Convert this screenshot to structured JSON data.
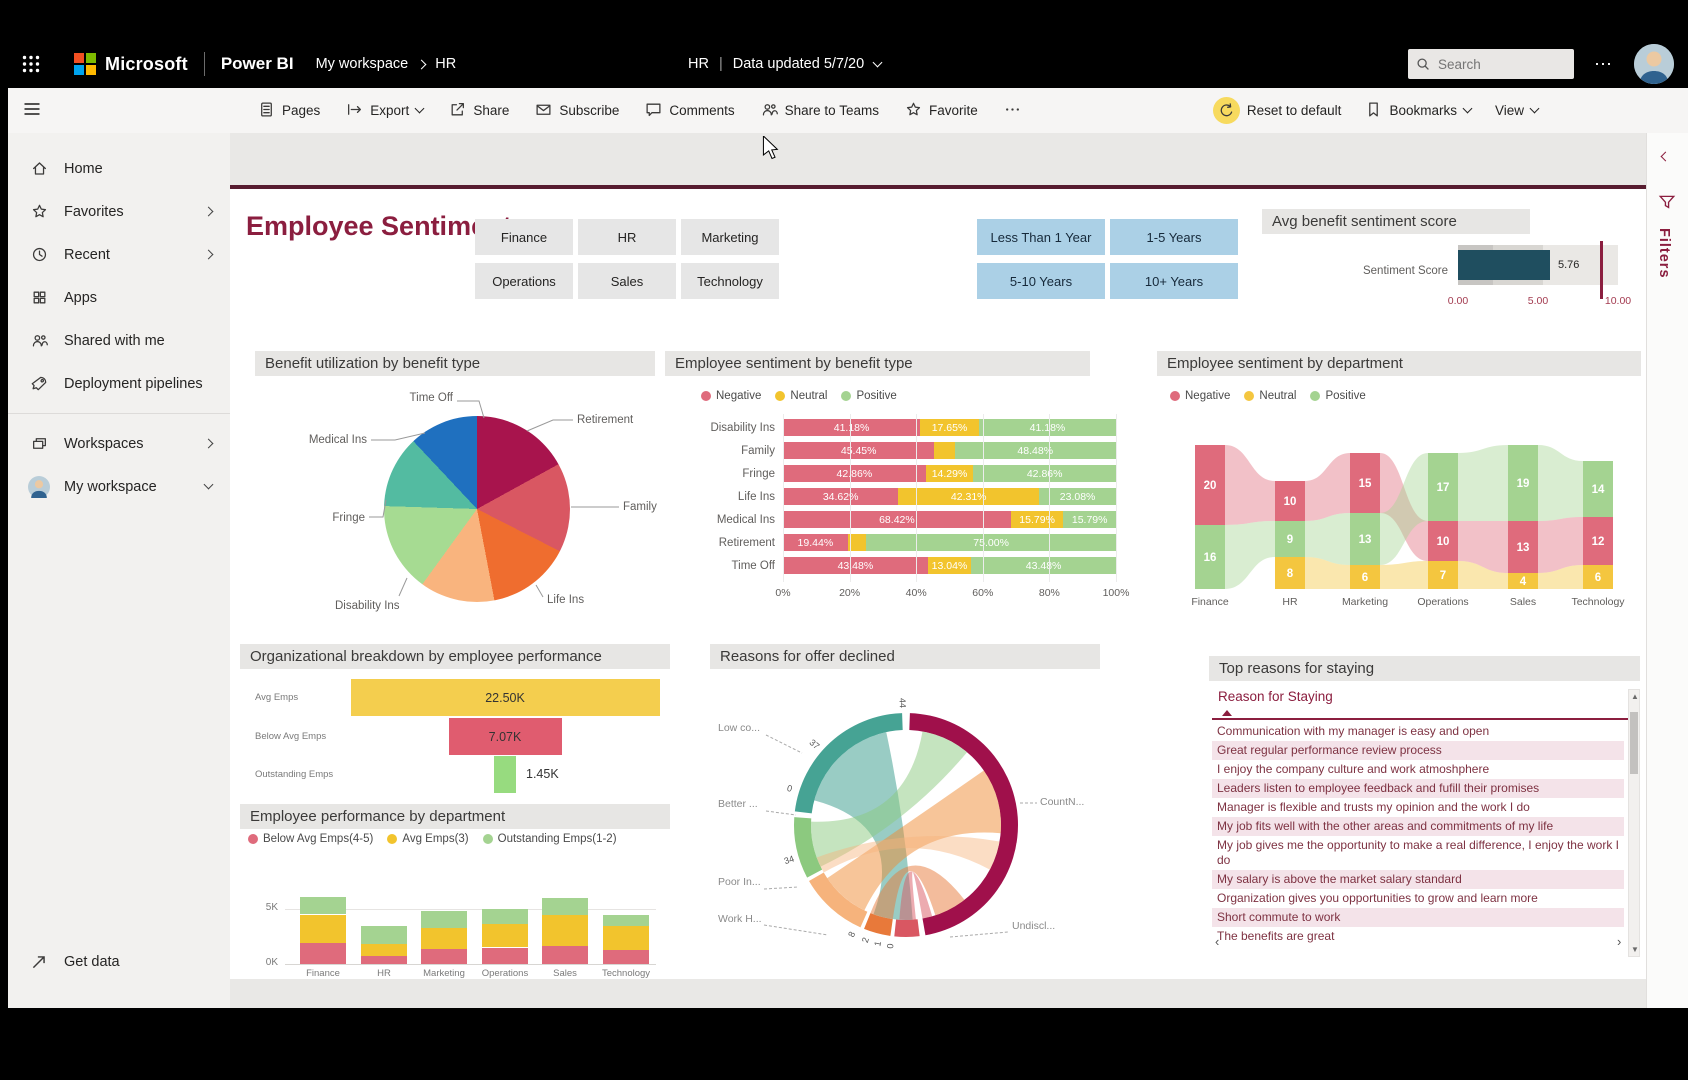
{
  "appbar": {
    "microsoft": "Microsoft",
    "product": "Power BI",
    "breadcrumb_workspace": "My workspace",
    "breadcrumb_page": "HR",
    "center_title": "HR",
    "center_updated": "Data updated 5/7/20",
    "search_placeholder": "Search",
    "more": "..."
  },
  "toolbar": {
    "left": [
      {
        "icon": "pages-icon",
        "label": "Pages"
      },
      {
        "icon": "export-icon",
        "label": "Export",
        "chevron": true
      },
      {
        "icon": "share-icon",
        "label": "Share"
      },
      {
        "icon": "subscribe-icon",
        "label": "Subscribe"
      },
      {
        "icon": "comments-icon",
        "label": "Comments"
      },
      {
        "icon": "teams-icon",
        "label": "Share to Teams"
      },
      {
        "icon": "favorite-icon",
        "label": "Favorite"
      },
      {
        "icon": "more-icon",
        "label": ""
      }
    ],
    "right": [
      {
        "icon": "reset-icon",
        "label": "Reset to default",
        "highlight": true
      },
      {
        "icon": "bookmark-icon",
        "label": "Bookmarks",
        "chevron": true
      },
      {
        "icon": "",
        "label": "View",
        "chevron": true
      }
    ]
  },
  "sidebar": {
    "items": [
      {
        "icon": "home-icon",
        "label": "Home"
      },
      {
        "icon": "star-icon",
        "label": "Favorites",
        "chevron": "right"
      },
      {
        "icon": "clock-icon",
        "label": "Recent",
        "chevron": "right"
      },
      {
        "icon": "apps-icon",
        "label": "Apps"
      },
      {
        "icon": "people-icon",
        "label": "Shared with me"
      },
      {
        "icon": "rocket-icon",
        "label": "Deployment pipelines"
      },
      {
        "icon": "layers-icon",
        "label": "Workspaces",
        "chevron": "right"
      },
      {
        "icon": "avatar",
        "label": "My workspace",
        "chevron": "down"
      }
    ],
    "divider_after": 5,
    "bottom_label": "Get data"
  },
  "filters_rail": {
    "label": "Filters"
  },
  "report": {
    "title": "Employee Sentiment",
    "slicers": {
      "departments": [
        "Finance",
        "HR",
        "Marketing",
        "Operations",
        "Sales",
        "Technology"
      ],
      "tenure": [
        "Less Than 1 Year",
        "1-5 Years",
        "5-10 Years",
        "10+ Years"
      ]
    },
    "gauge": {
      "title": "Avg benefit sentiment score",
      "label": "Sentiment Score",
      "value": "5.76",
      "value_num": 5.76,
      "min": 0,
      "max": 10,
      "ticks": [
        "0.00",
        "5.00",
        "10.00"
      ],
      "bar_color": "#1F4E5F",
      "target_color": "#8B1E3F"
    },
    "pie": {
      "title": "Benefit utilization by benefit type",
      "slices": [
        {
          "label": "Retirement",
          "pct": 17,
          "color": "#A8144D"
        },
        {
          "label": "Family",
          "pct": 15.5,
          "color": "#D95762"
        },
        {
          "label": "Life Ins",
          "pct": 14.5,
          "color": "#EF6D2F"
        },
        {
          "label": "Disability Ins",
          "pct": 13,
          "color": "#F9B47E"
        },
        {
          "label": "Fringe",
          "pct": 15.5,
          "color": "#A6DB92"
        },
        {
          "label": "Medical Ins",
          "pct": 12.5,
          "color": "#53BBA1"
        },
        {
          "label": "Time Off",
          "pct": 12,
          "color": "#1F70BF"
        }
      ]
    },
    "sentiment_by_benefit": {
      "title": "Employee sentiment by benefit type",
      "legend": [
        {
          "label": "Negative",
          "color": "#DF6B7C"
        },
        {
          "label": "Neutral",
          "color": "#F2C42D"
        },
        {
          "label": "Positive",
          "color": "#A4D391"
        }
      ],
      "categories": [
        "Disability Ins",
        "Family",
        "Fringe",
        "Life Ins",
        "Medical Ins",
        "Retirement",
        "Time Off"
      ],
      "rows": [
        [
          41.18,
          17.65,
          41.18
        ],
        [
          45.45,
          6.06,
          48.48
        ],
        [
          42.86,
          14.29,
          42.86
        ],
        [
          34.62,
          42.31,
          23.08
        ],
        [
          68.42,
          15.79,
          15.79
        ],
        [
          19.44,
          5.56,
          75.0
        ],
        [
          43.48,
          13.04,
          43.48
        ]
      ],
      "ticks": [
        "0%",
        "20%",
        "40%",
        "60%",
        "80%",
        "100%"
      ]
    },
    "sentiment_by_dept": {
      "title": "Employee sentiment by department",
      "legend": [
        {
          "label": "Negative",
          "color": "#DF6B7C"
        },
        {
          "label": "Neutral",
          "color": "#F4C63F"
        },
        {
          "label": "Positive",
          "color": "#A4D391"
        }
      ],
      "departments": [
        {
          "name": "Finance",
          "stacks": [
            {
              "s": "negative",
              "v": 20
            },
            {
              "s": "positive",
              "v": 16
            }
          ]
        },
        {
          "name": "HR",
          "stacks": [
            {
              "s": "negative",
              "v": 10
            },
            {
              "s": "positive",
              "v": 9
            },
            {
              "s": "neutral",
              "v": 8
            }
          ]
        },
        {
          "name": "Marketing",
          "stacks": [
            {
              "s": "negative",
              "v": 15
            },
            {
              "s": "positive",
              "v": 13
            },
            {
              "s": "neutral",
              "v": 6
            }
          ]
        },
        {
          "name": "Operations",
          "stacks": [
            {
              "s": "positive",
              "v": 17
            },
            {
              "s": "negative",
              "v": 10
            },
            {
              "s": "neutral",
              "v": 7
            }
          ]
        },
        {
          "name": "Sales",
          "stacks": [
            {
              "s": "positive",
              "v": 19
            },
            {
              "s": "negative",
              "v": 13
            },
            {
              "s": "neutral",
              "v": 4
            }
          ]
        },
        {
          "name": "Technology",
          "stacks": [
            {
              "s": "positive",
              "v": 14
            },
            {
              "s": "negative",
              "v": 12
            },
            {
              "s": "neutral",
              "v": 6
            }
          ]
        }
      ]
    },
    "funnel": {
      "title": "Organizational breakdown by employee performance",
      "rows": [
        {
          "label": "Avg Emps",
          "value": "22.50K",
          "num": 22.5,
          "color": "#F4CE4E"
        },
        {
          "label": "Below Avg Emps",
          "value": "7.07K",
          "num": 7.07,
          "color": "#E05C6F"
        },
        {
          "label": "Outstanding Emps",
          "value": "1.45K",
          "num": 1.45,
          "color": "#97DB7F"
        }
      ]
    },
    "perf_by_dept": {
      "title": "Employee performance by department",
      "legend": [
        {
          "label": "Below Avg Emps(4-5)",
          "color": "#DF6B7C"
        },
        {
          "label": "Avg Emps(3)",
          "color": "#F2C42D"
        },
        {
          "label": "Outstanding Emps(1-2)",
          "color": "#A4D391"
        }
      ],
      "yticks": [
        "5K",
        "0K"
      ],
      "categories": [
        "Finance",
        "HR",
        "Marketing",
        "Operations",
        "Sales",
        "Technology"
      ],
      "series": [
        {
          "name": "Below Avg Emps(4-5)",
          "color": "#DF6B7C",
          "values": [
            1.9,
            0.7,
            1.4,
            1.5,
            1.6,
            1.3
          ]
        },
        {
          "name": "Avg Emps(3)",
          "color": "#F2C42D",
          "values": [
            2.6,
            1.1,
            1.9,
            2.1,
            2.9,
            2.2
          ]
        },
        {
          "name": "Outstanding Emps(1-2)",
          "color": "#A4D391",
          "values": [
            1.6,
            1.7,
            1.5,
            1.4,
            1.5,
            1.0
          ]
        }
      ]
    },
    "offer_declined": {
      "title": "Reasons for offer declined",
      "labels": [
        "Low co...",
        "Better ...",
        "Poor In...",
        "Work H...",
        "Undiscl...",
        "CountN..."
      ],
      "segments": [
        {
          "label": "CountN...",
          "a1": 2,
          "a2": 170,
          "color": "#A0104B"
        },
        {
          "label": "Undiscl...",
          "a1": 173,
          "a2": 186,
          "color": "#D95762"
        },
        {
          "label": "Work H...",
          "a1": 188,
          "a2": 202,
          "color": "#E8793A"
        },
        {
          "label": "Poor In...",
          "a1": 204,
          "a2": 240,
          "color": "#F6B37C"
        },
        {
          "label": "Better ...",
          "a1": 242,
          "a2": 274,
          "color": "#8CC97F"
        },
        {
          "label": "Low co...",
          "a1": 277,
          "a2": 358,
          "color": "#46A394"
        }
      ],
      "ring_numbers": [
        {
          "t": "44",
          "a": 357
        },
        {
          "t": "37",
          "a": 310
        },
        {
          "t": "0",
          "a": 286
        },
        {
          "t": "34",
          "a": 252
        },
        {
          "t": "0",
          "a": 186
        },
        {
          "t": "1",
          "a": 192
        },
        {
          "t": "2",
          "a": 198
        },
        {
          "t": "8",
          "a": 205
        }
      ]
    },
    "staying": {
      "title": "Top reasons for staying",
      "column": "Reason for Staying",
      "rows": [
        "Communication with my manager is easy and open",
        "Great regular performance review process",
        "I enjoy the company culture and work atmoshphere",
        "Leaders listen to employee feedback and fufill their promises",
        "Manager is flexible and trusts my opinion and the work I do",
        "My job fits well with the other areas and commitments of my life",
        "My job gives me the opportunity to make a real difference, I enjoy the work I do",
        "My salary is above the market salary standard",
        "Organization gives you opportunities to grow and learn more",
        "Short commute to work",
        "The benefits are great"
      ]
    }
  },
  "colors": {
    "accent_maroon": "#8B1E3F",
    "negative": "#DF6B7C",
    "neutral": "#F2C42D",
    "positive": "#A4D391",
    "slicer_blue": "#abd0e6",
    "gauge_blue": "#1F4E5F"
  },
  "chart_data": [
    {
      "type": "pie",
      "title": "Benefit utilization by benefit type",
      "categories": [
        "Retirement",
        "Family",
        "Life Ins",
        "Disability Ins",
        "Fringe",
        "Medical Ins",
        "Time Off"
      ],
      "values": [
        17,
        15.5,
        14.5,
        13,
        15.5,
        12.5,
        12
      ]
    },
    {
      "type": "bar",
      "title": "Employee sentiment by benefit type",
      "orientation": "horizontal-stacked-100",
      "categories": [
        "Disability Ins",
        "Family",
        "Fringe",
        "Life Ins",
        "Medical Ins",
        "Retirement",
        "Time Off"
      ],
      "series": [
        {
          "name": "Negative",
          "values": [
            41.18,
            45.45,
            42.86,
            34.62,
            68.42,
            19.44,
            43.48
          ]
        },
        {
          "name": "Neutral",
          "values": [
            17.65,
            6.06,
            14.29,
            42.31,
            15.79,
            5.56,
            13.04
          ]
        },
        {
          "name": "Positive",
          "values": [
            41.18,
            48.48,
            42.86,
            23.08,
            15.79,
            75.0,
            43.48
          ]
        }
      ],
      "xlim": [
        0,
        100
      ],
      "ticks": [
        "0%",
        "20%",
        "40%",
        "60%",
        "80%",
        "100%"
      ]
    },
    {
      "type": "bar",
      "subtype": "ribbon",
      "title": "Employee sentiment by department",
      "categories": [
        "Finance",
        "HR",
        "Marketing",
        "Operations",
        "Sales",
        "Technology"
      ],
      "series": [
        {
          "name": "Negative",
          "values": [
            20,
            10,
            15,
            10,
            13,
            12
          ]
        },
        {
          "name": "Neutral",
          "values": [
            0,
            8,
            6,
            7,
            4,
            6
          ]
        },
        {
          "name": "Positive",
          "values": [
            16,
            9,
            13,
            17,
            19,
            14
          ]
        }
      ]
    },
    {
      "type": "bar",
      "subtype": "funnel",
      "title": "Organizational breakdown by employee performance",
      "categories": [
        "Avg Emps",
        "Below Avg Emps",
        "Outstanding Emps"
      ],
      "values": [
        22500,
        7070,
        1450
      ],
      "labels": [
        "22.50K",
        "7.07K",
        "1.45K"
      ]
    },
    {
      "type": "bar",
      "subtype": "stacked-column",
      "title": "Employee performance by department",
      "categories": [
        "Finance",
        "HR",
        "Marketing",
        "Operations",
        "Sales",
        "Technology"
      ],
      "series": [
        {
          "name": "Below Avg Emps(4-5)",
          "values": [
            1900,
            700,
            1400,
            1500,
            1600,
            1300
          ]
        },
        {
          "name": "Avg Emps(3)",
          "values": [
            2600,
            1100,
            1900,
            2100,
            2900,
            2200
          ]
        },
        {
          "name": "Outstanding Emps(1-2)",
          "values": [
            1600,
            1700,
            1500,
            1400,
            1500,
            1000
          ]
        }
      ],
      "ylabel": "",
      "yticks": [
        "0K",
        "5K"
      ]
    },
    {
      "type": "chord",
      "title": "Reasons for offer declined",
      "categories": [
        "Low co...",
        "Better ...",
        "Poor In...",
        "Work H...",
        "Undiscl...",
        "CountN..."
      ],
      "visible_numbers": [
        44,
        37,
        0,
        34,
        0,
        1,
        2,
        8
      ]
    },
    {
      "type": "table",
      "title": "Top reasons for staying",
      "columns": [
        "Reason for Staying"
      ],
      "rows": [
        [
          "Communication with my manager is easy and open"
        ],
        [
          "Great regular performance review process"
        ],
        [
          "I enjoy the company culture and work atmoshphere"
        ],
        [
          "Leaders listen to employee feedback and fufill their promises"
        ],
        [
          "Manager is flexible and trusts my opinion and the work I do"
        ],
        [
          "My job fits well with the other areas and commitments of my life"
        ],
        [
          "My job gives me the opportunity to make a real difference, I enjoy the work I do"
        ],
        [
          "My salary is above the market salary standard"
        ],
        [
          "Organization gives you opportunities to grow and learn more"
        ],
        [
          "Short commute to work"
        ],
        [
          "The benefits are great"
        ]
      ]
    }
  ]
}
